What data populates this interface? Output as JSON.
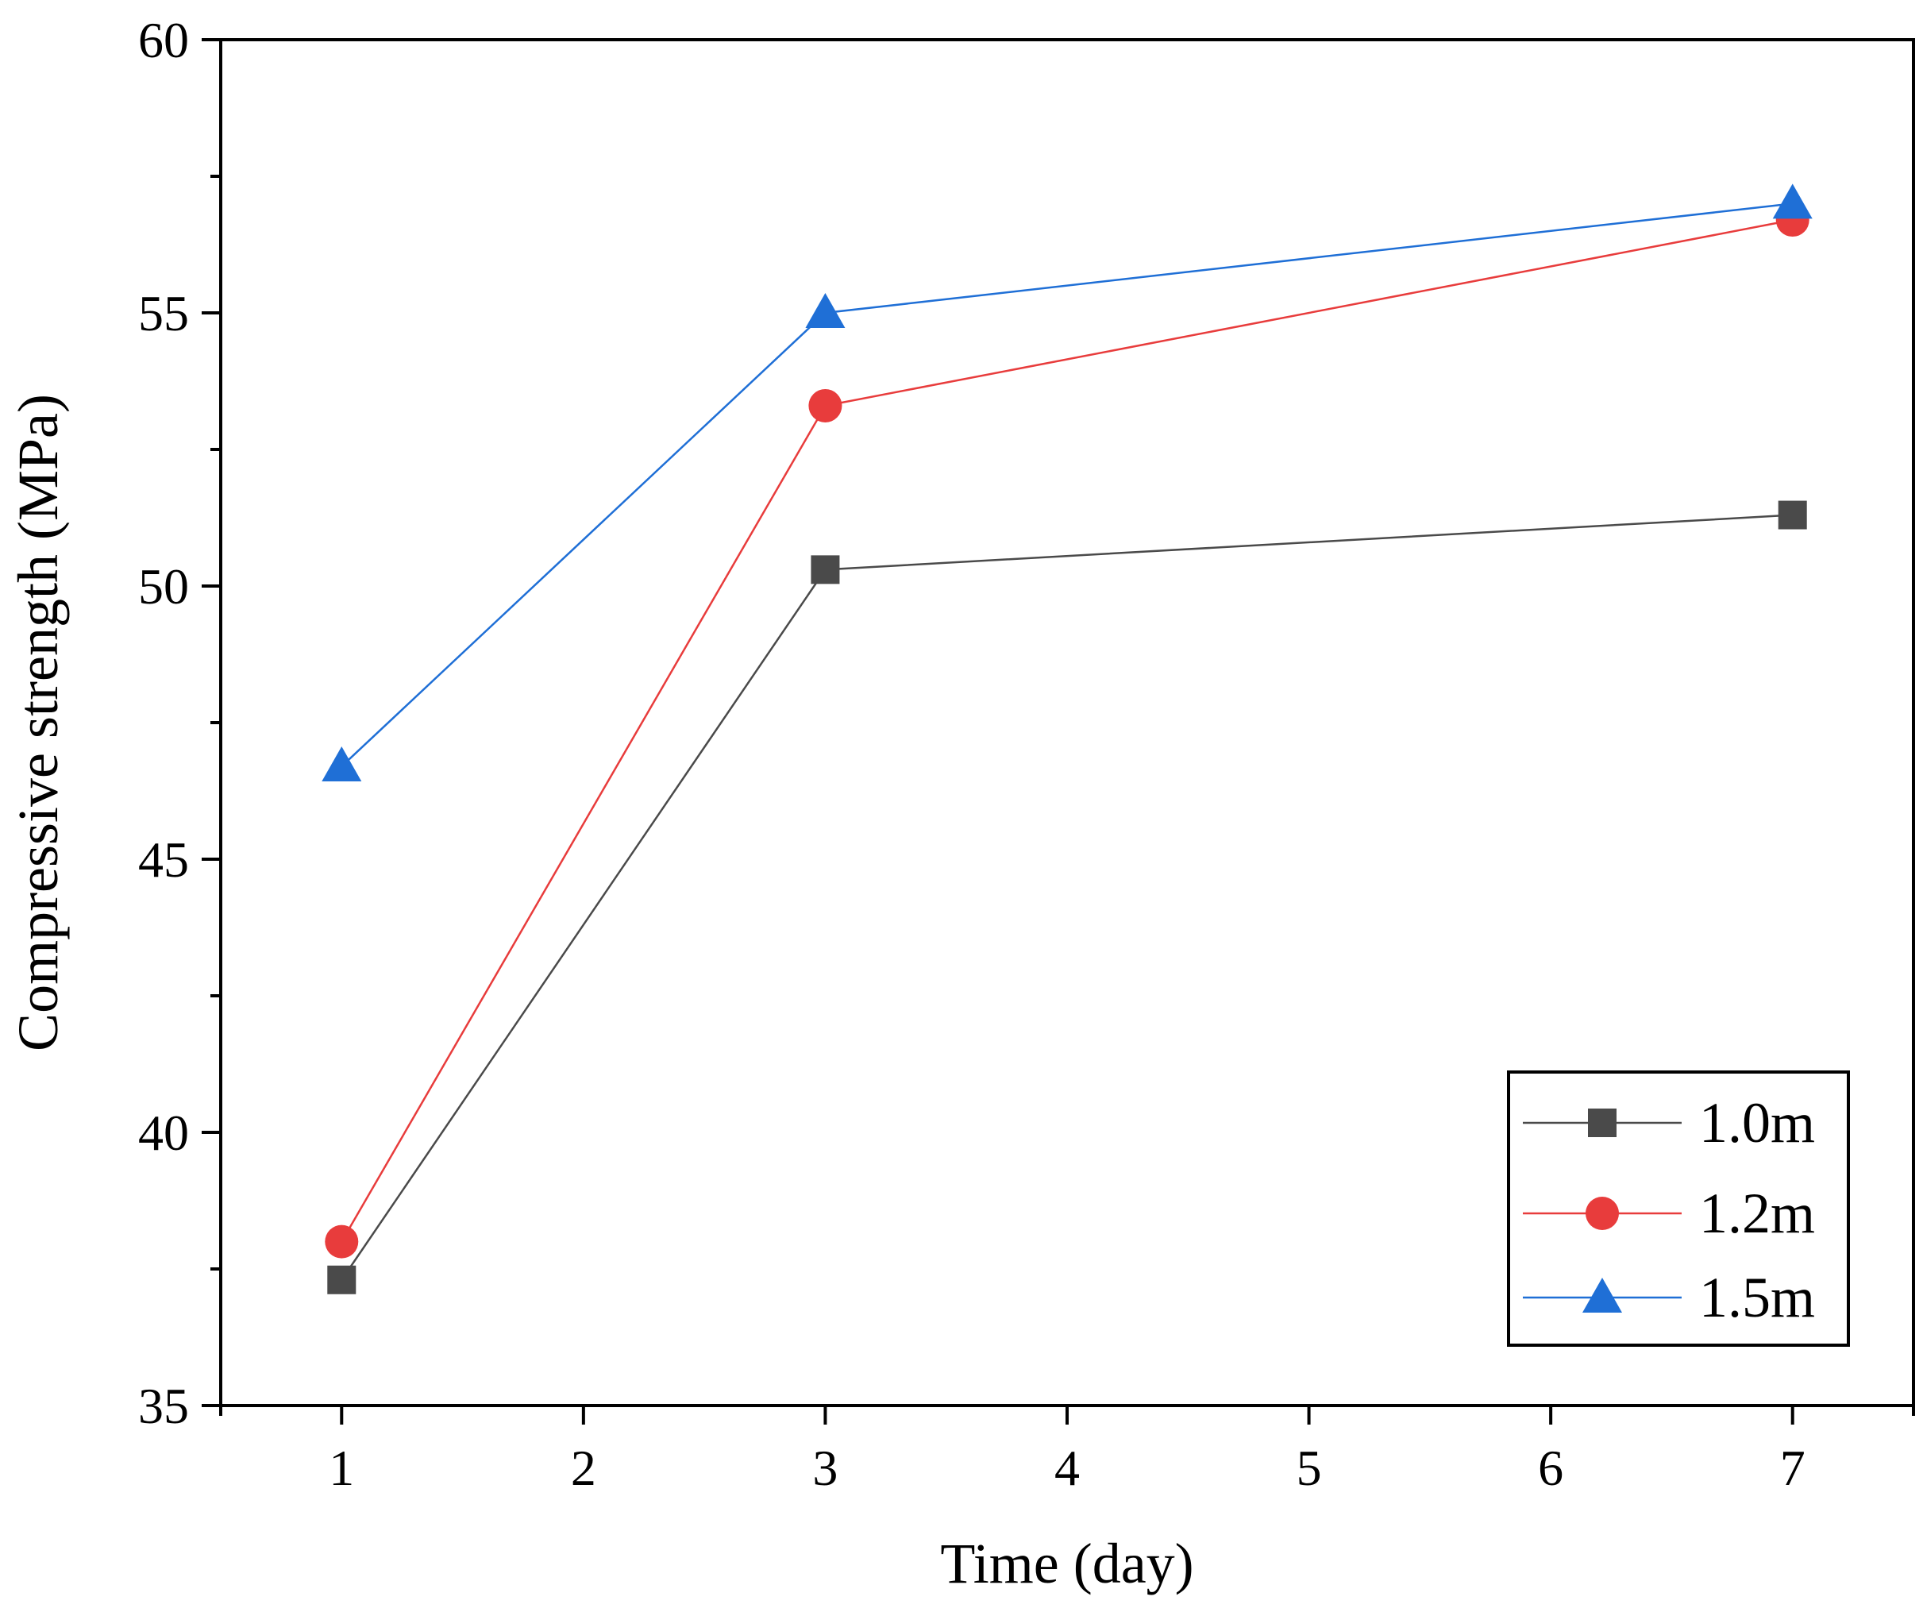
{
  "chart_data": {
    "type": "line",
    "title": "",
    "xlabel": "Time (day)",
    "ylabel": "Compressive strength (MPa)",
    "xlim": [
      0.5,
      7.5
    ],
    "ylim": [
      35,
      60
    ],
    "xticks": [
      1,
      2,
      3,
      4,
      5,
      6,
      7
    ],
    "yticks": [
      35,
      40,
      45,
      50,
      55,
      60
    ],
    "grid": false,
    "legend_position": "bottom-right",
    "series": [
      {
        "name": "1.0m",
        "marker": "square",
        "color": "#4a4a4a",
        "x": [
          1,
          3,
          7
        ],
        "values": [
          37.3,
          50.3,
          51.3
        ]
      },
      {
        "name": "1.2m",
        "marker": "circle",
        "color": "#e83c3c",
        "x": [
          1,
          3,
          7
        ],
        "values": [
          38.0,
          53.3,
          56.7
        ]
      },
      {
        "name": "1.5m",
        "marker": "triangle",
        "color": "#1f6fd6",
        "x": [
          1,
          3,
          7
        ],
        "values": [
          46.7,
          55.0,
          57.0
        ]
      }
    ]
  }
}
